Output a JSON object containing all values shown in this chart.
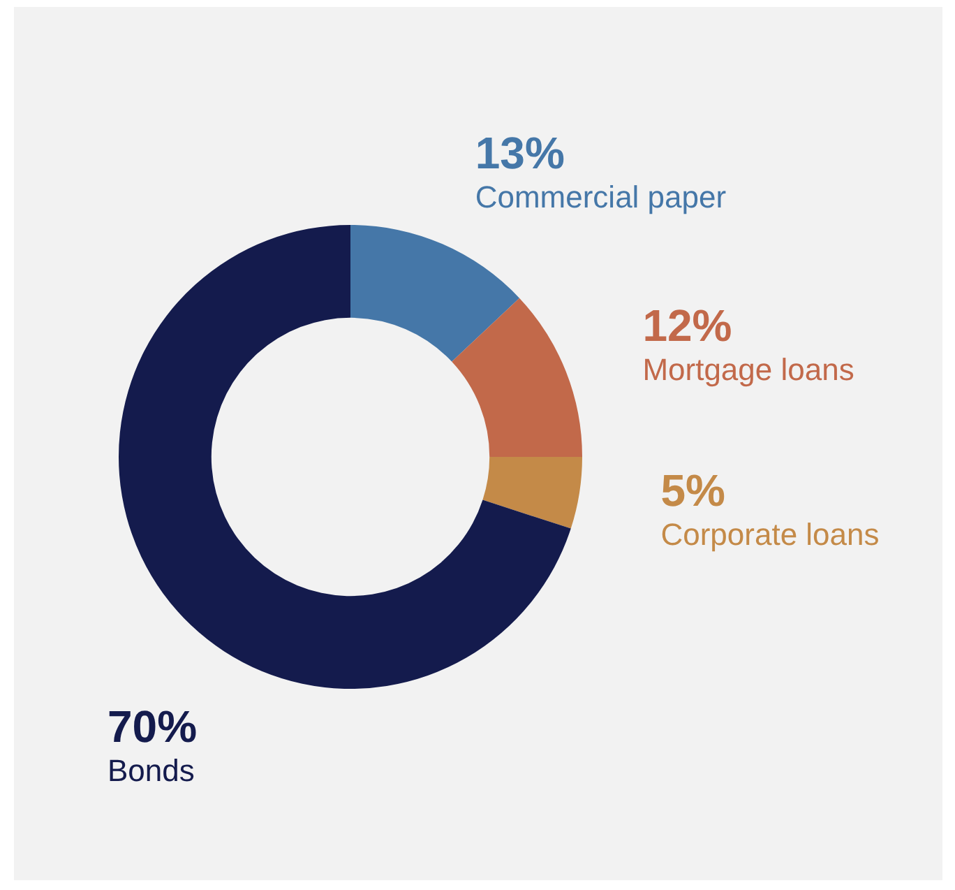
{
  "chart_data": {
    "type": "donut",
    "categories": [
      "Commercial paper",
      "Mortgage loans",
      "Corporate loans",
      "Bonds"
    ],
    "values": [
      13,
      12,
      5,
      70
    ],
    "colors": [
      "#4577a8",
      "#c2694a",
      "#c48a48",
      "#141b4d"
    ],
    "value_labels": [
      "13%",
      "12%",
      "5%",
      "70%"
    ]
  }
}
